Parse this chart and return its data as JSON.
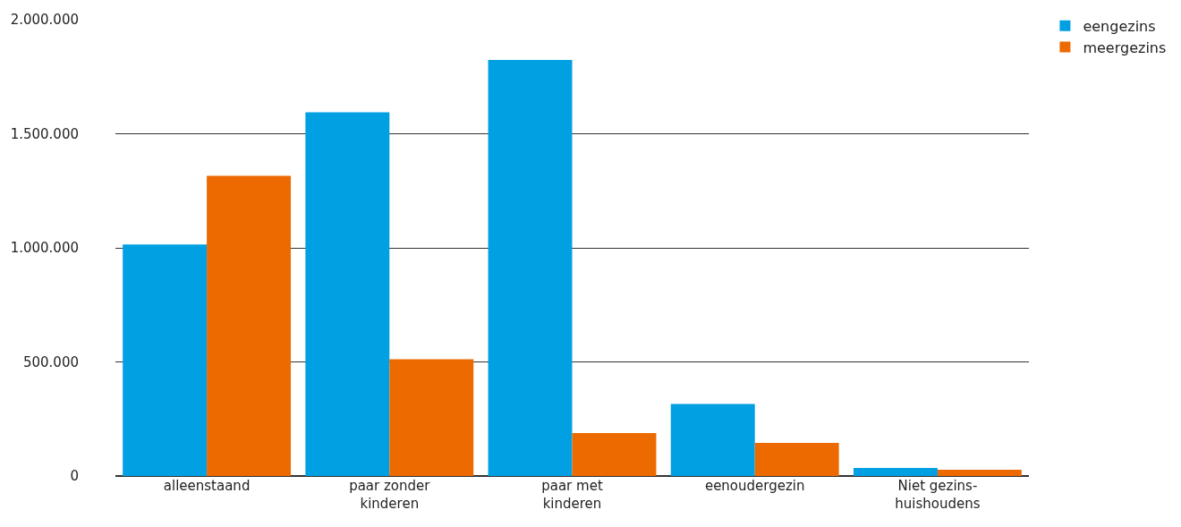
{
  "chart_data": {
    "type": "bar",
    "categories": [
      "alleenstaand",
      "paar zonder\nkinderen",
      "paar met\nkinderen",
      "eenoudergezin",
      "Niet gezins-\nhuishoudens"
    ],
    "series": [
      {
        "name": "eengezins",
        "color": "#00a0e2",
        "values": [
          1015000,
          1594000,
          1824000,
          316000,
          35000
        ]
      },
      {
        "name": "meergezins",
        "color": "#ec6a00",
        "values": [
          1316000,
          512000,
          188000,
          145000,
          27000
        ]
      }
    ],
    "ylim": [
      0,
      2000000
    ],
    "yticks": [
      {
        "value": 0,
        "label": "0"
      },
      {
        "value": 500000,
        "label": "500.000"
      },
      {
        "value": 1000000,
        "label": "1.000.000"
      },
      {
        "value": 1500000,
        "label": "1.500.000"
      },
      {
        "value": 2000000,
        "label": "2.000.000"
      }
    ],
    "grid": "y",
    "legend": "top right"
  }
}
